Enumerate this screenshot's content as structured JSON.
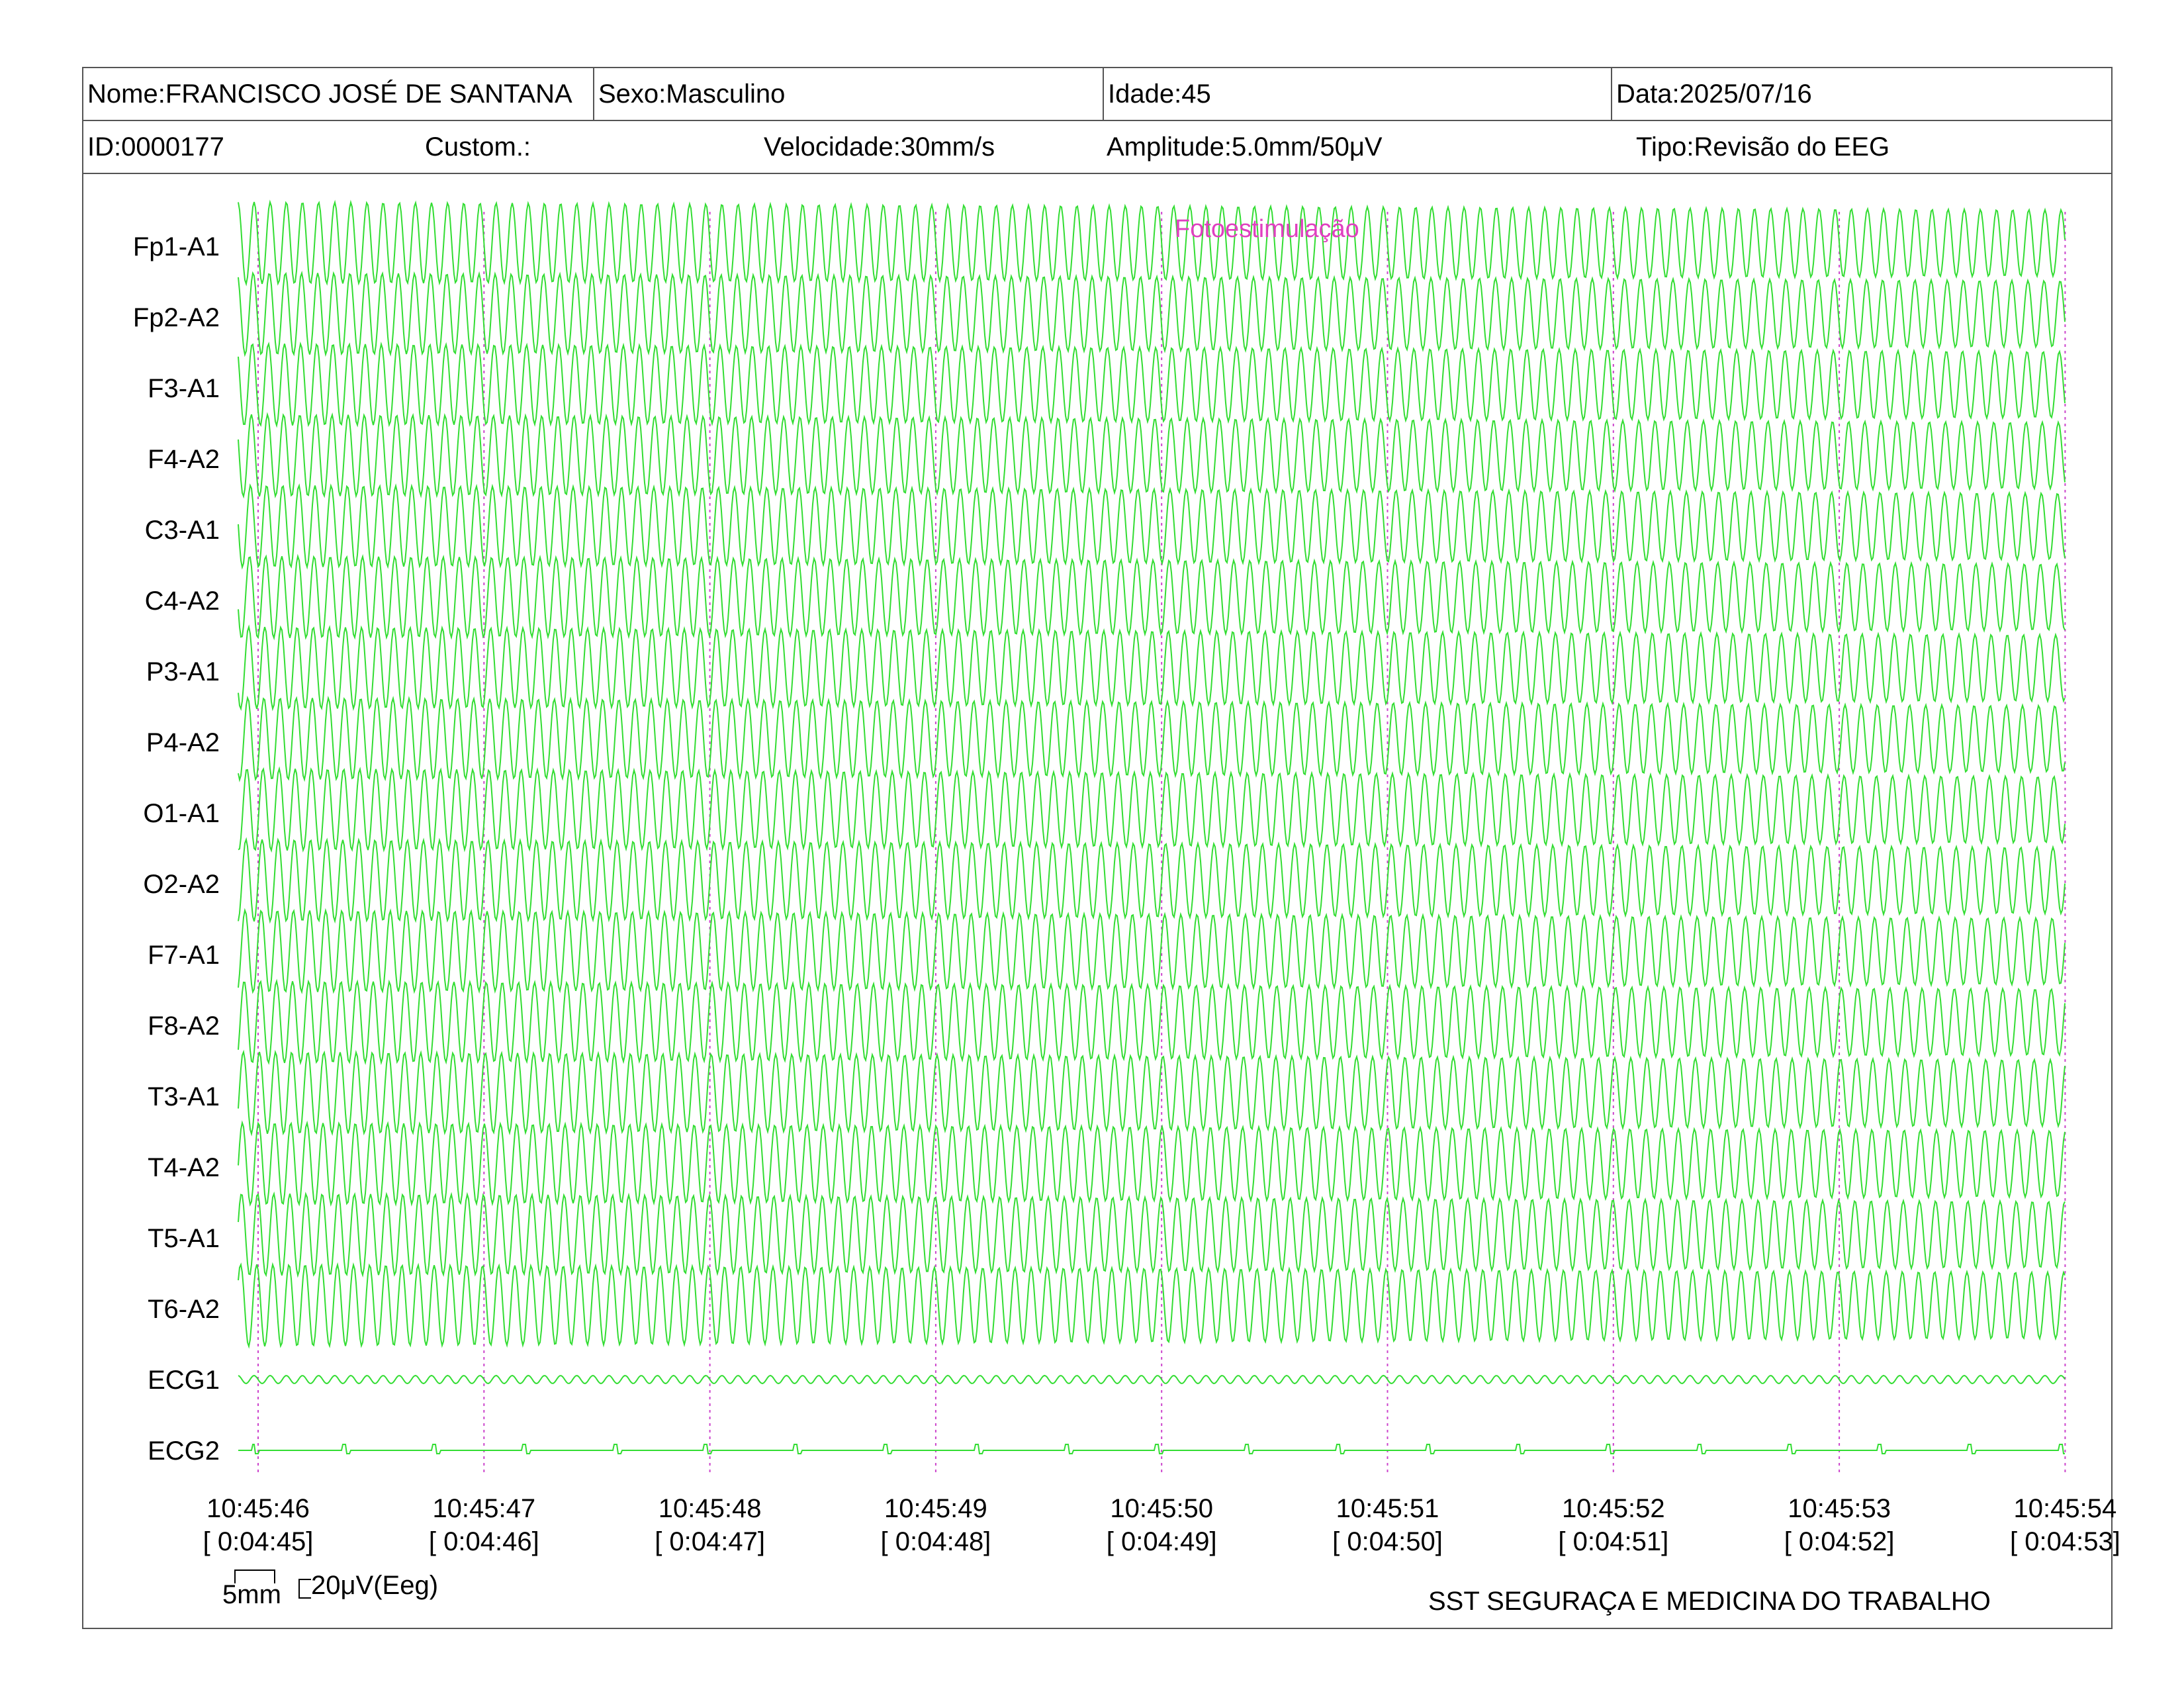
{
  "header": {
    "nome": "Nome:FRANCISCO JOSÉ DE SANTANA",
    "sexo": "Sexo:Masculino",
    "idade": "Idade:45",
    "data": "Data:2025/07/16",
    "id": "ID:0000177",
    "custom": "Custom.:",
    "velocidade": "Velocidade:30mm/s",
    "amplitude": "Amplitude:5.0mm/50μV",
    "tipo": "Tipo:Revisão do EEG"
  },
  "annotation": {
    "text": "Fotoestimulação",
    "color": "#e040c0"
  },
  "scale_bar": {
    "time_label": "5mm",
    "amp_label": "20μV(Eeg)"
  },
  "footer": {
    "org": "SST SEGURAÇA E MEDICINA DO TRABALHO"
  },
  "colors": {
    "trace": "#33dd33",
    "marker": "#cc44cc"
  },
  "chart_data": {
    "type": "line",
    "channels": [
      "Fp1-A1",
      "Fp2-A2",
      "F3-A1",
      "F4-A2",
      "C3-A1",
      "C4-A2",
      "P3-A1",
      "P4-A2",
      "O1-A1",
      "O2-A2",
      "F7-A1",
      "F8-A2",
      "T3-A1",
      "T4-A2",
      "T5-A1",
      "T6-A2",
      "ECG1",
      "ECG2"
    ],
    "time_ticks": [
      {
        "clock": "10:45:46",
        "elapsed": "[ 0:04:45]"
      },
      {
        "clock": "10:45:47",
        "elapsed": "[ 0:04:46]"
      },
      {
        "clock": "10:45:48",
        "elapsed": "[ 0:04:47]"
      },
      {
        "clock": "10:45:49",
        "elapsed": "[ 0:04:48]"
      },
      {
        "clock": "10:45:50",
        "elapsed": "[ 0:04:49]"
      },
      {
        "clock": "10:45:51",
        "elapsed": "[ 0:04:50]"
      },
      {
        "clock": "10:45:52",
        "elapsed": "[ 0:04:51]"
      },
      {
        "clock": "10:45:53",
        "elapsed": "[ 0:04:52]"
      },
      {
        "clock": "10:45:54",
        "elapsed": "[ 0:04:53]"
      }
    ],
    "eeg_frequency_hz": 14,
    "ecg1_frequency_hz": 14,
    "ecg2_beat_interval_s": 0.4
  }
}
